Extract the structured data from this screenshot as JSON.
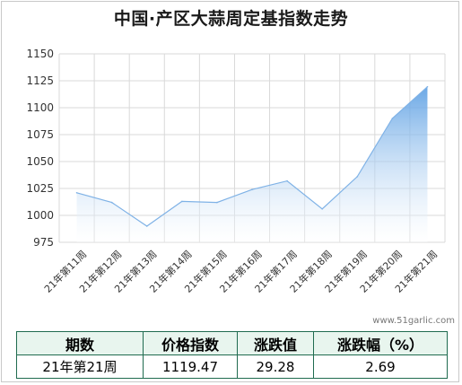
{
  "title": "中国·产区大蒜周定基指数走势",
  "watermark": "www.51garlic.com",
  "chart_data": {
    "type": "area",
    "categories": [
      "21年第11周",
      "21年第12周",
      "21年第13周",
      "21年第14周",
      "21年第15周",
      "21年第16周",
      "21年第17周",
      "21年第18周",
      "21年第19周",
      "21年第20周",
      "21年第21周"
    ],
    "values": [
      1021,
      1012,
      990,
      1013,
      1012,
      1024,
      1032,
      1006,
      1036,
      1090,
      1119.47
    ],
    "ylim": [
      975,
      1150
    ],
    "yticks": [
      975,
      1000,
      1025,
      1050,
      1075,
      1100,
      1125,
      1150
    ],
    "grid": true,
    "colors": {
      "line": "#7fb2e6",
      "fill_top": "#5a9ee3",
      "fill_bottom": "#ffffff",
      "grid": "#d9d9d9"
    }
  },
  "table": {
    "headers": [
      "期数",
      "价格指数",
      "涨跌值",
      "涨跌幅（%）"
    ],
    "row": [
      "21年第21周",
      "1119.47",
      "29.28",
      "2.69"
    ]
  }
}
